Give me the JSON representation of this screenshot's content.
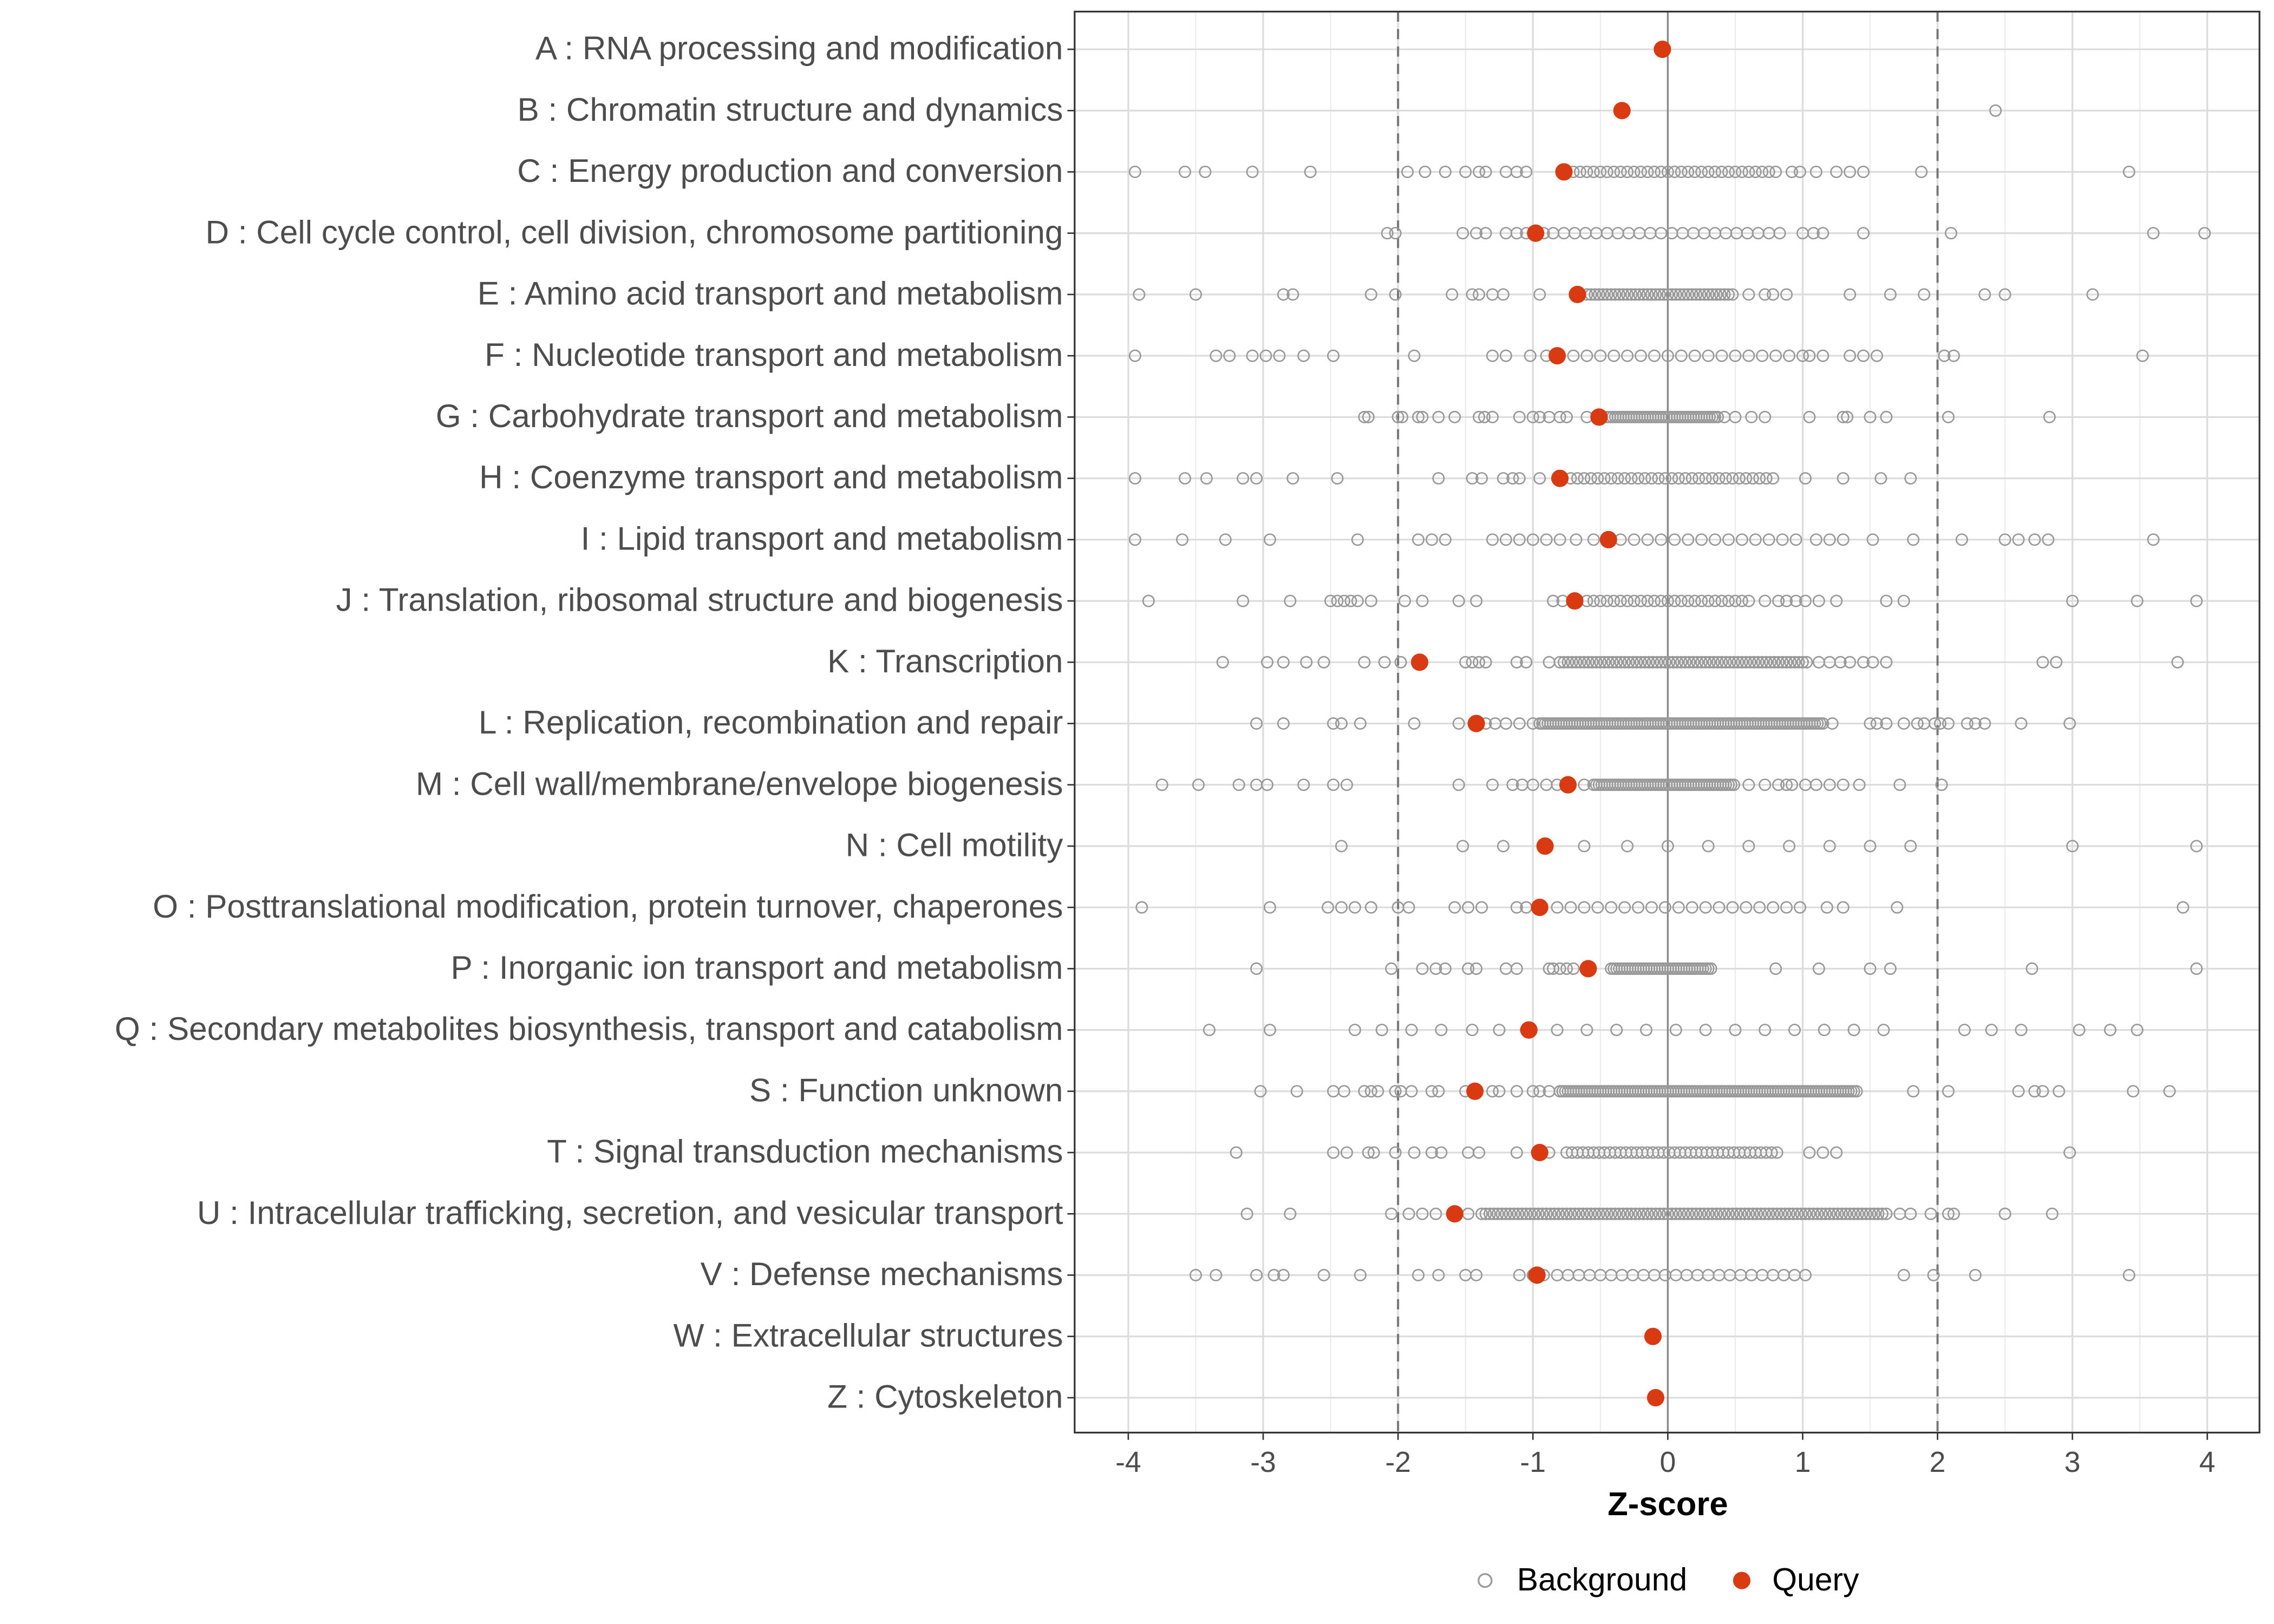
{
  "chart_data": {
    "type": "scatter",
    "xlabel": "Z-score",
    "xlim": [
      -4.2,
      4.4
    ],
    "x_ticks": [
      "-4",
      "-3",
      "-2",
      "-1",
      "0",
      "1",
      "2",
      "3",
      "4"
    ],
    "x_tick_values": [
      -4,
      -3,
      -2,
      -1,
      0,
      1,
      2,
      3,
      4
    ],
    "reference_lines": {
      "dashed": [
        -2,
        2
      ],
      "solid": [
        0
      ]
    },
    "grid": true,
    "legend": {
      "position": "bottom",
      "entries": [
        "Background",
        "Query"
      ]
    },
    "colors": {
      "background": "#999999",
      "query": "#d93a12"
    },
    "categories": [
      {
        "label": "A : RNA processing and modification",
        "query": -0.04,
        "background": [
          -0.04
        ],
        "dense": null
      },
      {
        "label": "B : Chromatin structure and dynamics",
        "query": -0.34,
        "background": [
          2.43
        ],
        "dense": null
      },
      {
        "label": "C : Energy production and conversion",
        "query": -0.77,
        "background": [
          -3.95,
          -3.58,
          -3.43,
          -3.08,
          -2.65,
          -1.93,
          -1.8,
          -1.65,
          -1.5,
          -1.4,
          -1.35,
          -1.2,
          -1.12,
          -1.05,
          0.75,
          0.8,
          0.92,
          0.98,
          1.1,
          1.25,
          1.35,
          1.45,
          1.88,
          3.42
        ],
        "dense": [
          -0.7,
          0.7,
          0.05
        ]
      },
      {
        "label": "D : Cell cycle control, cell division, chromosome partitioning",
        "query": -0.98,
        "background": [
          -2.08,
          -2.02,
          -1.52,
          -1.42,
          -1.35,
          -1.2,
          -1.12,
          -1.05,
          -0.92,
          1.0,
          1.08,
          1.15,
          1.45,
          2.1,
          3.6,
          3.98
        ],
        "dense": [
          -0.85,
          0.85,
          0.08
        ]
      },
      {
        "label": "E : Amino acid transport and metabolism",
        "query": -0.67,
        "background": [
          -3.92,
          -3.5,
          -2.85,
          -2.78,
          -2.2,
          -2.02,
          -1.6,
          -1.45,
          -1.4,
          -1.3,
          -1.22,
          -0.95,
          -0.68,
          0.6,
          0.72,
          0.78,
          0.88,
          1.35,
          1.65,
          1.9,
          2.35,
          2.5,
          3.15
        ],
        "dense": [
          -0.6,
          0.5,
          0.03
        ]
      },
      {
        "label": "F : Nucleotide transport and metabolism",
        "query": -0.82,
        "background": [
          -3.95,
          -3.35,
          -3.25,
          -3.08,
          -2.98,
          -2.88,
          -2.7,
          -2.48,
          -1.88,
          -1.3,
          -1.2,
          -1.02,
          -0.9,
          1.05,
          1.15,
          1.35,
          1.45,
          1.55,
          2.05,
          2.12,
          3.52
        ],
        "dense": [
          -0.7,
          1.0,
          0.1
        ]
      },
      {
        "label": "G : Carbohydrate transport and metabolism",
        "query": -0.51,
        "background": [
          -2.25,
          -2.22,
          -2.0,
          -1.97,
          -1.85,
          -1.82,
          -1.7,
          -1.58,
          -1.4,
          -1.36,
          -1.3,
          -1.1,
          -1.0,
          -0.95,
          -0.88,
          -0.8,
          -0.75,
          -0.6,
          0.42,
          0.5,
          0.62,
          0.72,
          1.05,
          1.3,
          1.33,
          1.5,
          1.62,
          2.08,
          2.83
        ],
        "dense": [
          -0.45,
          0.38,
          0.02
        ]
      },
      {
        "label": "H : Coenzyme transport and metabolism",
        "query": -0.8,
        "background": [
          -3.95,
          -3.58,
          -3.42,
          -3.15,
          -3.05,
          -2.78,
          -2.45,
          -1.7,
          -1.45,
          -1.38,
          -1.22,
          -1.15,
          -1.1,
          -0.95,
          1.02,
          1.3,
          1.58,
          1.8
        ],
        "dense": [
          -0.72,
          0.82,
          0.05
        ]
      },
      {
        "label": "I : Lipid transport and metabolism",
        "query": -0.44,
        "background": [
          -3.95,
          -3.6,
          -3.28,
          -2.95,
          -2.3,
          -1.85,
          -1.75,
          -1.65,
          -1.3,
          -1.2,
          -1.1,
          -1.0,
          -0.9,
          -0.8,
          -0.68,
          -0.55,
          1.1,
          1.2,
          1.3,
          1.52,
          1.82,
          2.18,
          2.5,
          2.6,
          2.72,
          2.82,
          3.6
        ],
        "dense": [
          -0.35,
          1.0,
          0.1
        ]
      },
      {
        "label": "J : Translation, ribosomal structure and biogenesis",
        "query": -0.69,
        "background": [
          -3.85,
          -3.15,
          -2.8,
          -2.5,
          -2.45,
          -2.4,
          -2.35,
          -2.3,
          -2.2,
          -1.95,
          -1.82,
          -1.55,
          -1.42,
          -0.85,
          -0.78,
          0.72,
          0.82,
          0.88,
          0.95,
          1.02,
          1.12,
          1.25,
          1.62,
          1.75,
          3.0,
          3.48,
          3.92
        ],
        "dense": [
          -0.6,
          0.62,
          0.05
        ]
      },
      {
        "label": "K : Transcription",
        "query": -1.84,
        "background": [
          -3.3,
          -2.97,
          -2.85,
          -2.68,
          -2.55,
          -2.25,
          -2.1,
          -1.98,
          -1.5,
          -1.45,
          -1.4,
          -1.35,
          -1.12,
          -1.05,
          -0.88,
          1.12,
          1.2,
          1.28,
          1.35,
          1.45,
          1.52,
          1.62,
          2.78,
          2.88,
          3.78
        ],
        "dense": [
          -0.8,
          1.05,
          0.03
        ]
      },
      {
        "label": "L : Replication, recombination and repair",
        "query": -1.42,
        "background": [
          -3.05,
          -2.85,
          -2.48,
          -2.42,
          -2.28,
          -1.88,
          -1.55,
          -1.35,
          -1.28,
          -1.2,
          -1.1,
          -1.0,
          1.22,
          1.5,
          1.55,
          1.62,
          1.75,
          1.85,
          1.9,
          1.98,
          2.02,
          2.08,
          2.22,
          2.28,
          2.35,
          2.62,
          2.98
        ],
        "dense": [
          -0.95,
          1.15,
          0.02
        ]
      },
      {
        "label": "M : Cell wall/membrane/envelope biogenesis",
        "query": -0.74,
        "background": [
          -3.75,
          -3.48,
          -3.18,
          -3.05,
          -2.97,
          -2.7,
          -2.48,
          -2.38,
          -1.55,
          -1.3,
          -1.15,
          -1.08,
          -1.0,
          -0.9,
          -0.82,
          -0.62,
          0.6,
          0.72,
          0.82,
          0.88,
          0.92,
          1.02,
          1.1,
          1.2,
          1.3,
          1.42,
          1.72,
          2.03
        ],
        "dense": [
          -0.55,
          0.5,
          0.02
        ]
      },
      {
        "label": "N : Cell motility",
        "query": -0.91,
        "background": [
          -2.42,
          -1.52,
          -1.22,
          -0.92,
          -0.62,
          -0.3,
          0,
          0.3,
          0.6,
          0.9,
          1.2,
          1.5,
          1.8,
          3.0,
          3.92
        ],
        "dense": null
      },
      {
        "label": "O : Posttranslational modification, protein turnover, chaperones",
        "query": -0.95,
        "background": [
          -3.9,
          -2.95,
          -2.52,
          -2.42,
          -2.32,
          -2.2,
          -2.0,
          -1.92,
          -1.58,
          -1.48,
          -1.38,
          -1.12,
          -1.05,
          -0.95,
          1.18,
          1.3,
          1.7,
          3.82
        ],
        "dense": [
          -0.82,
          1.0,
          0.1
        ]
      },
      {
        "label": "P : Inorganic ion transport and metabolism",
        "query": -0.59,
        "background": [
          -3.05,
          -2.05,
          -1.82,
          -1.72,
          -1.65,
          -1.48,
          -1.42,
          -1.2,
          -1.12,
          -0.88,
          -0.85,
          -0.8,
          -0.75,
          -0.7,
          0.8,
          1.12,
          1.5,
          1.65,
          2.7,
          3.92
        ],
        "dense": [
          -0.42,
          0.32,
          0.02
        ]
      },
      {
        "label": "Q : Secondary metabolites biosynthesis, transport and catabolism",
        "query": -1.03,
        "background": [
          -3.4,
          -2.95,
          -2.32,
          -2.12,
          -1.9,
          -1.68,
          -1.45,
          -1.25,
          -1.05,
          2.2,
          2.4,
          2.62,
          3.05,
          3.28,
          3.48
        ],
        "dense": [
          -0.82,
          1.78,
          0.22
        ]
      },
      {
        "label": "S : Function unknown",
        "query": -1.43,
        "background": [
          -3.02,
          -2.75,
          -2.48,
          -2.4,
          -2.25,
          -2.2,
          -2.15,
          -2.02,
          -1.98,
          -1.9,
          -1.75,
          -1.7,
          -1.5,
          -1.3,
          -1.25,
          -1.12,
          -1.0,
          -0.95,
          -0.88,
          1.82,
          2.08,
          2.6,
          2.72,
          2.78,
          2.9,
          3.45,
          3.72
        ],
        "dense": [
          -0.8,
          1.4,
          0.02
        ]
      },
      {
        "label": "T : Signal transduction mechanisms",
        "query": -0.95,
        "background": [
          -3.2,
          -2.48,
          -2.38,
          -2.22,
          -2.18,
          -2.02,
          -1.88,
          -1.75,
          -1.68,
          -1.48,
          -1.4,
          -1.12,
          -0.88,
          1.05,
          1.15,
          1.25,
          2.98
        ],
        "dense": [
          -0.75,
          0.82,
          0.04
        ]
      },
      {
        "label": "U : Intracellular trafficking, secretion, and vesicular transport",
        "query": -1.58,
        "background": [
          -3.12,
          -2.8,
          -2.05,
          -1.92,
          -1.82,
          -1.72,
          -1.48,
          1.72,
          1.8,
          1.95,
          2.08,
          2.12,
          2.5,
          2.85
        ],
        "dense": [
          -1.38,
          1.62,
          0.03
        ]
      },
      {
        "label": "V : Defense mechanisms",
        "query": -0.97,
        "background": [
          -3.5,
          -3.35,
          -3.05,
          -2.92,
          -2.85,
          -2.55,
          -2.28,
          -1.85,
          -1.7,
          -1.5,
          -1.42,
          -1.1,
          -1.0,
          -0.92,
          1.75,
          1.97,
          2.28,
          3.42
        ],
        "dense": [
          -0.82,
          1.05,
          0.08
        ]
      },
      {
        "label": "W : Extracellular structures",
        "query": -0.11,
        "background": [
          -0.11
        ],
        "dense": null
      },
      {
        "label": "Z : Cytoskeleton",
        "query": -0.09,
        "background": [
          -0.09
        ],
        "dense": null
      }
    ]
  }
}
